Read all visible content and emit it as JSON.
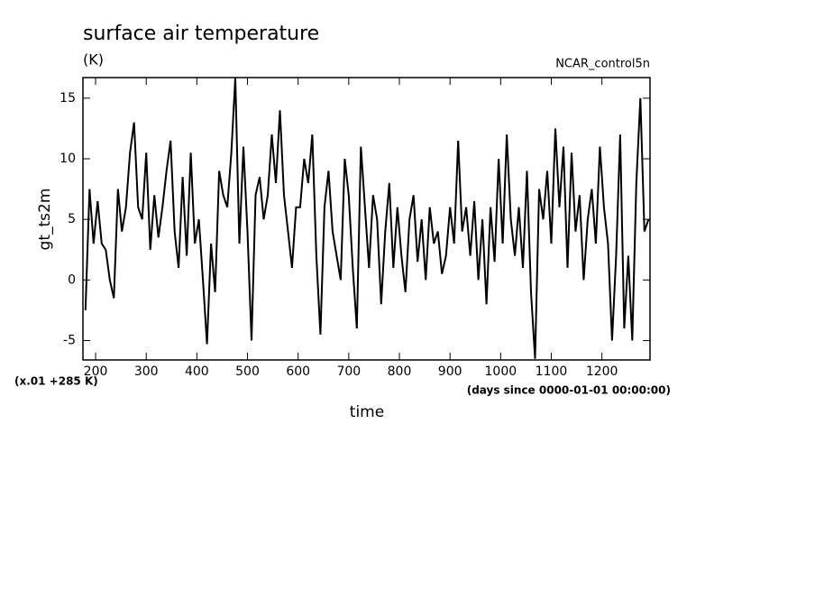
{
  "chart_data": {
    "type": "line",
    "title": "surface air temperature",
    "subtitle": "(K)",
    "run_label": "NCAR_control5n",
    "y_label": "gt_ts2m",
    "x_label": "time",
    "y_unit_note": "(x.01 +285 K)",
    "x_unit_note": "(days since 0000-01-01 00:00:00)",
    "xlim": [
      175,
      1295
    ],
    "ylim": [
      -6.6,
      16.7
    ],
    "xticks": [
      200,
      300,
      400,
      500,
      600,
      700,
      800,
      900,
      1000,
      1100,
      1200
    ],
    "yticks": [
      -5,
      0,
      5,
      10,
      15
    ],
    "color": "#000000",
    "x": [
      180,
      188,
      196,
      204,
      212,
      220,
      228,
      236,
      244,
      252,
      260,
      268,
      276,
      284,
      292,
      300,
      308,
      316,
      324,
      332,
      340,
      348,
      356,
      364,
      372,
      380,
      388,
      396,
      404,
      412,
      420,
      428,
      436,
      444,
      452,
      460,
      468,
      476,
      484,
      492,
      500,
      508,
      516,
      524,
      532,
      540,
      548,
      556,
      564,
      572,
      580,
      588,
      596,
      604,
      612,
      620,
      628,
      636,
      644,
      652,
      660,
      668,
      676,
      684,
      692,
      700,
      708,
      716,
      724,
      732,
      740,
      748,
      756,
      764,
      772,
      780,
      788,
      796,
      804,
      812,
      820,
      828,
      836,
      844,
      852,
      860,
      868,
      876,
      884,
      892,
      900,
      908,
      916,
      924,
      932,
      940,
      948,
      956,
      964,
      972,
      980,
      988,
      996,
      1004,
      1012,
      1020,
      1028,
      1036,
      1044,
      1052,
      1060,
      1068,
      1076,
      1084,
      1092,
      1100,
      1108,
      1116,
      1124,
      1132,
      1140,
      1148,
      1156,
      1164,
      1172,
      1180,
      1188,
      1196,
      1204,
      1212,
      1220,
      1228,
      1236,
      1244,
      1252,
      1260,
      1268,
      1276,
      1284,
      1292
    ],
    "values": [
      -2.5,
      7.5,
      3,
      6.5,
      3,
      2.5,
      0,
      -1.5,
      7.5,
      4,
      6,
      10.5,
      13,
      6,
      5,
      10.5,
      2.5,
      7,
      3.5,
      6,
      9,
      11.5,
      4,
      1,
      8.5,
      2,
      10.5,
      3,
      5,
      0,
      -5.3,
      3,
      -1,
      9,
      7,
      6,
      10.5,
      16.7,
      3,
      11,
      4,
      -5,
      7,
      8.5,
      5,
      7,
      12,
      8,
      14,
      7,
      4,
      1,
      6,
      6,
      10,
      8,
      12,
      2,
      -4.5,
      6,
      9,
      4,
      2,
      0,
      10,
      7,
      1,
      -4,
      11,
      6,
      1,
      7,
      5,
      -2,
      4,
      8,
      1,
      6,
      2,
      -1,
      5,
      7,
      1.5,
      5,
      0,
      6,
      3,
      4,
      0.5,
      2,
      6,
      3,
      11.5,
      4,
      6,
      2,
      6.5,
      0,
      5,
      -2,
      6,
      1.5,
      10,
      3,
      12,
      5,
      2,
      6,
      1,
      9,
      -1,
      -6.5,
      7.5,
      5,
      9,
      3,
      12.5,
      6,
      11,
      1,
      10.5,
      4,
      7,
      0,
      5,
      7.5,
      3,
      11,
      6,
      3,
      -5,
      2,
      12,
      -4,
      2,
      -5,
      8,
      15,
      4,
      5
    ]
  }
}
